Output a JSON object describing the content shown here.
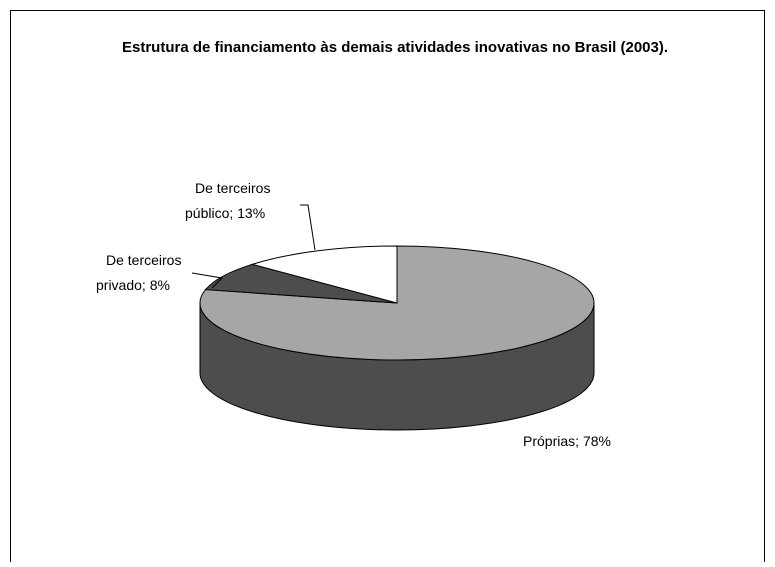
{
  "chart_data": {
    "type": "pie3d",
    "title": "Estrutura de financiamento às demais atividades inovativas no Brasil (2003).",
    "values": [
      78,
      8,
      13
    ],
    "value_labels": [
      "Próprias; 78%",
      "De terceiros privado; 8%",
      "De terceiros público; 13%"
    ],
    "colors": [
      "#a6a6a6",
      "#4d4d4d",
      "#ffffff"
    ],
    "side_color": "#4d4d4d"
  }
}
